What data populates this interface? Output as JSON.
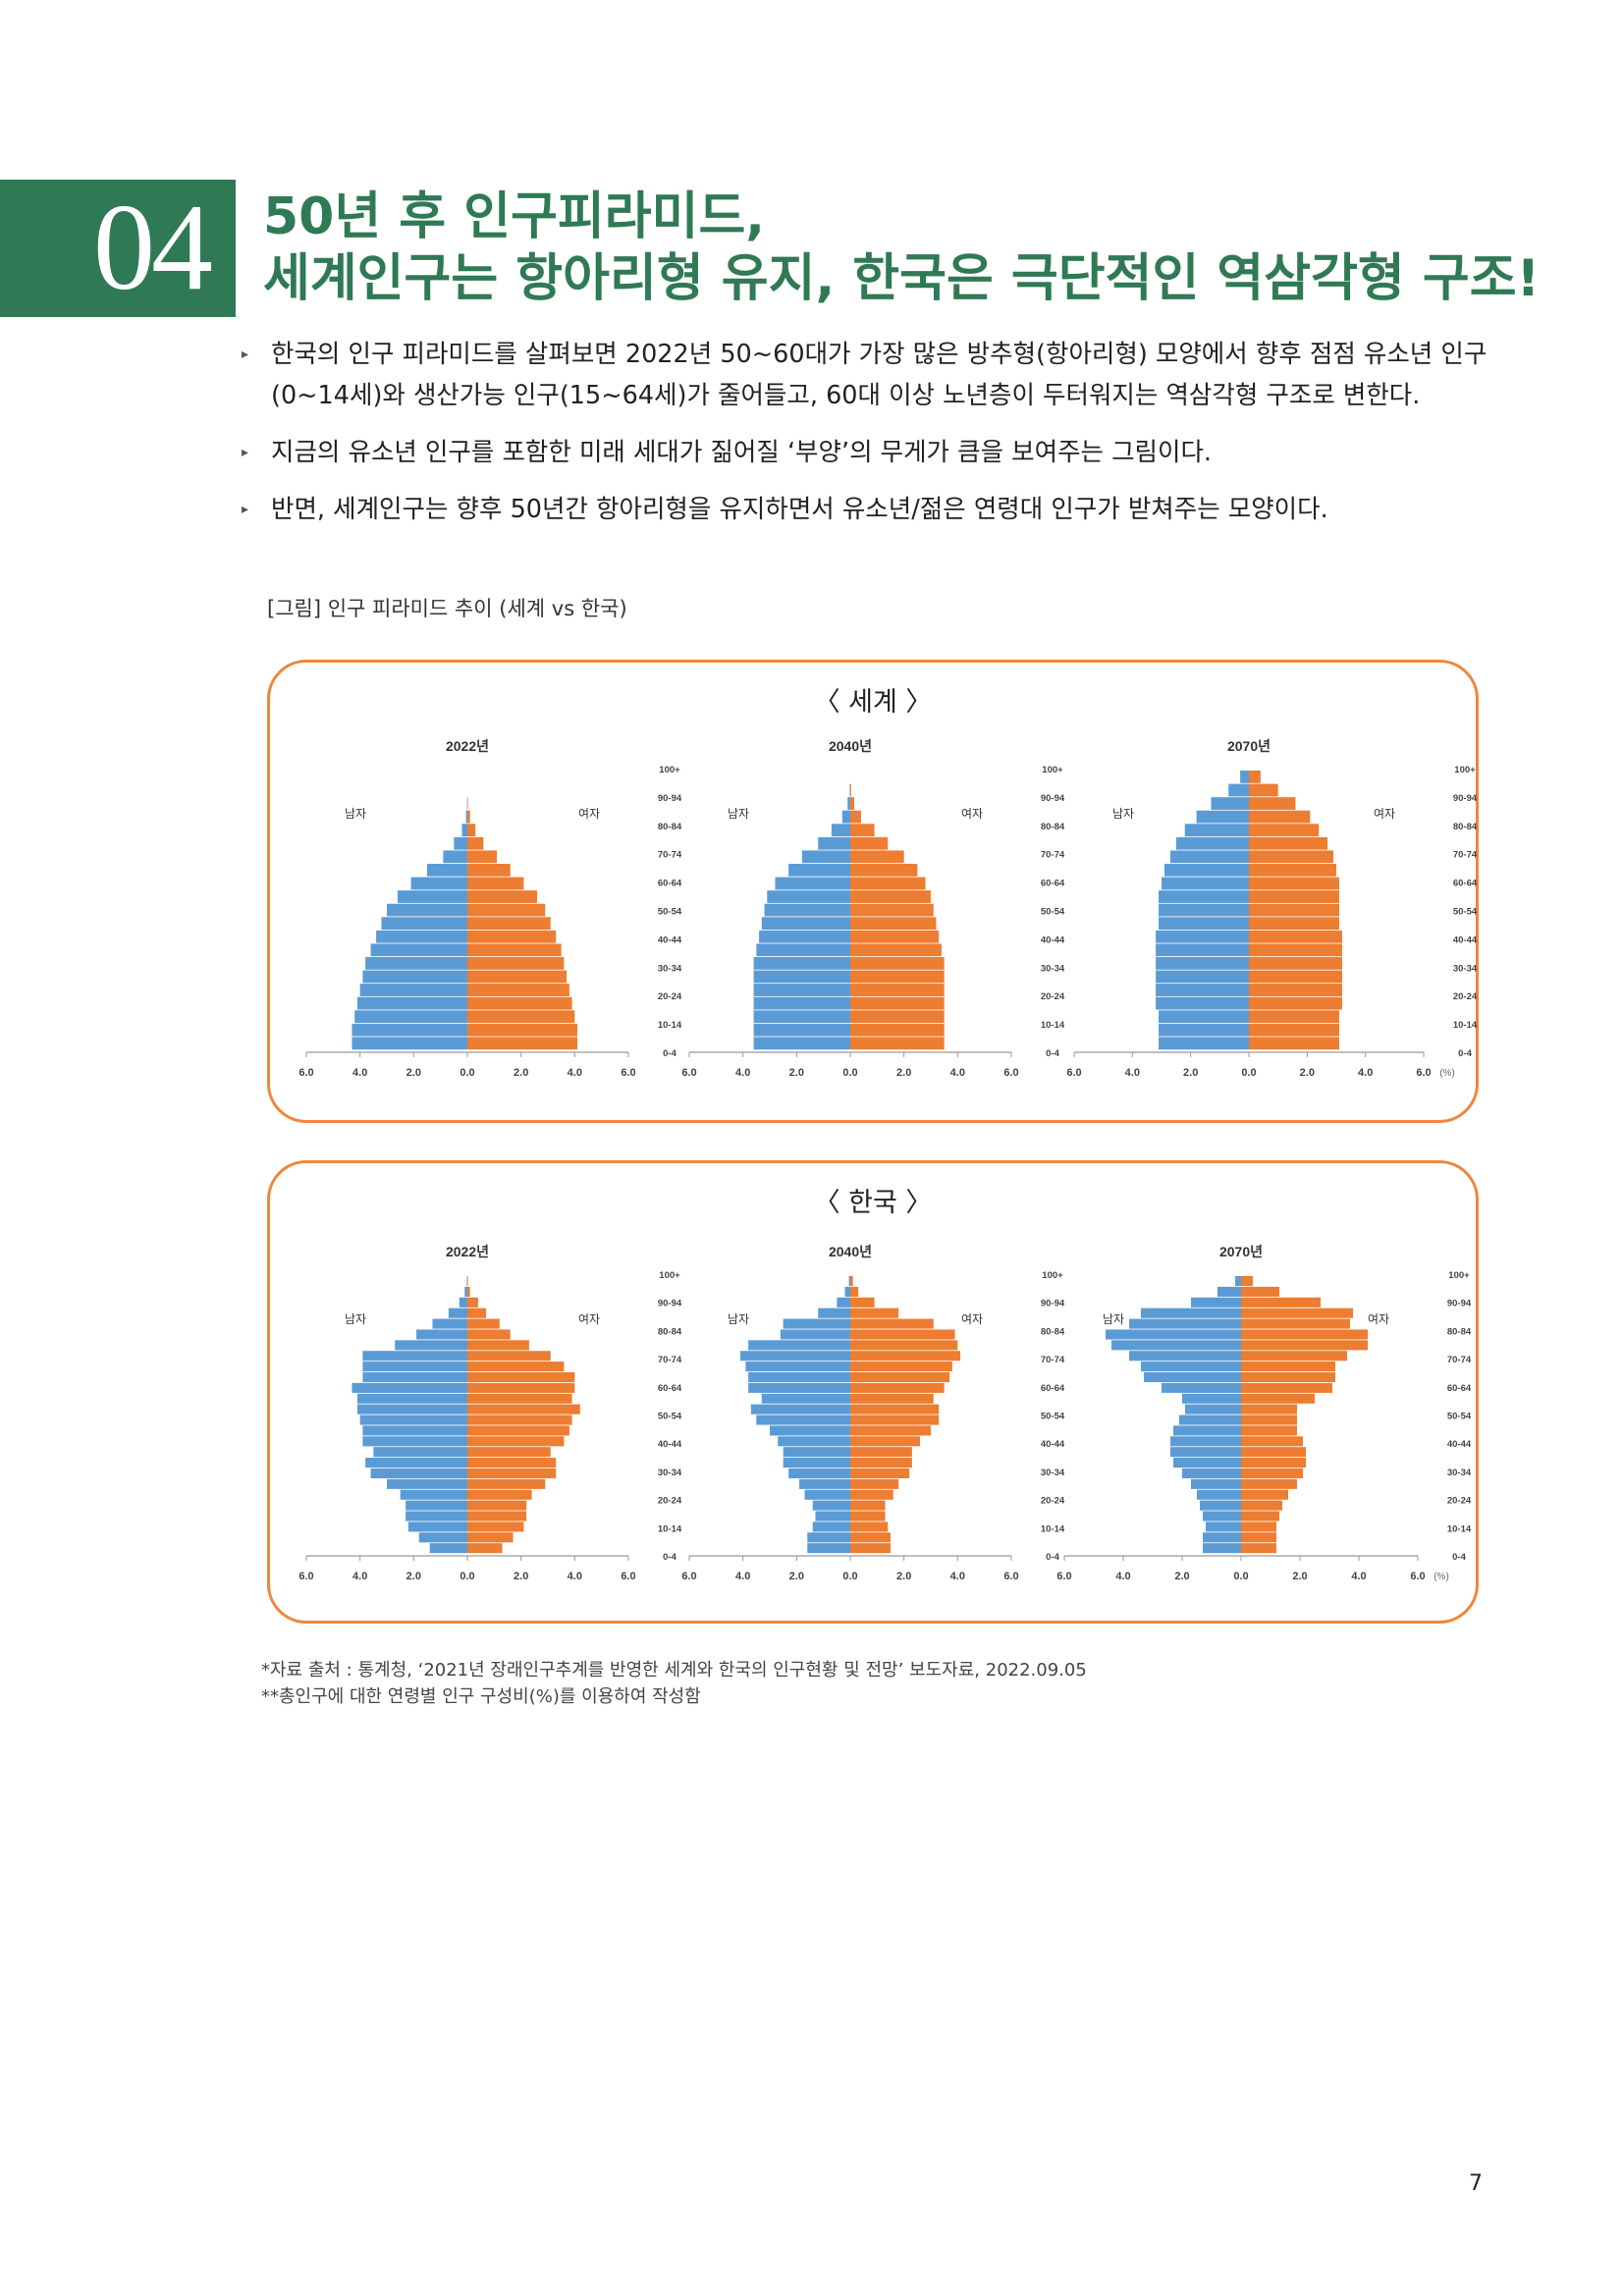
{
  "header": {
    "number": "04",
    "title_line1": "50년 후 인구피라미드,",
    "title_line2": "세계인구는 항아리형 유지, 한국은 극단적인 역삼각형 구조!"
  },
  "bullets": [
    "한국의 인구 피라미드를 살펴보면 2022년 50~60대가 가장 많은 방추형(항아리형) 모양에서 향후 점점 유소년 인구(0~14세)와 생산가능 인구(15~64세)가 줄어들고, 60대 이상 노년층이 두터워지는 역삼각형 구조로 변한다.",
    "지금의 유소년 인구를 포함한 미래 세대가 짊어질 ‘부양’의 무게가 큼을 보여주는 그림이다.",
    "반면, 세계인구는 향후 50년간 항아리형을 유지하면서 유소년/젊은 연령대 인구가 받쳐주는 모양이다."
  ],
  "figure_caption": "[그림] 인구 피라미드 추이 (세계 vs 한국)",
  "labels": {
    "male": "남자",
    "female": "여자",
    "unit": "(%)"
  },
  "colors": {
    "male": "#5b9bd5",
    "female": "#ed7d31",
    "panel_border": "#f0863a",
    "accent": "#2f7a55"
  },
  "chart_data": [
    {
      "type": "bar",
      "group": "〈 세계 〉",
      "title": "2022년",
      "age_ticks": [
        "100+",
        "90-94",
        "80-84",
        "70-74",
        "60-64",
        "50-54",
        "40-44",
        "30-34",
        "20-24",
        "10-14",
        "0-4"
      ],
      "x_ticks": [
        "6.0",
        "4.0",
        "2.0",
        "0.0",
        "2.0",
        "4.0",
        "6.0"
      ],
      "xlim": [
        -6,
        6
      ],
      "male": [
        4.3,
        4.3,
        4.2,
        4.1,
        4.0,
        3.9,
        3.8,
        3.6,
        3.4,
        3.2,
        3.0,
        2.6,
        2.1,
        1.5,
        0.9,
        0.5,
        0.2,
        0.05,
        0.01,
        0.0,
        0.0
      ],
      "female": [
        4.1,
        4.1,
        4.0,
        3.9,
        3.8,
        3.7,
        3.6,
        3.5,
        3.3,
        3.1,
        2.9,
        2.6,
        2.1,
        1.6,
        1.1,
        0.6,
        0.3,
        0.1,
        0.02,
        0.0,
        0.0
      ]
    },
    {
      "type": "bar",
      "group": "〈 세계 〉",
      "title": "2040년",
      "age_ticks": [
        "100+",
        "90-94",
        "80-84",
        "70-74",
        "60-64",
        "50-54",
        "40-44",
        "30-34",
        "20-24",
        "10-14",
        "0-4"
      ],
      "x_ticks": [
        "6.0",
        "4.0",
        "2.0",
        "0.0",
        "2.0",
        "4.0",
        "6.0"
      ],
      "xlim": [
        -6,
        6
      ],
      "male": [
        3.6,
        3.6,
        3.6,
        3.6,
        3.6,
        3.6,
        3.6,
        3.5,
        3.4,
        3.3,
        3.2,
        3.1,
        2.8,
        2.3,
        1.8,
        1.2,
        0.7,
        0.3,
        0.1,
        0.02,
        0.0
      ],
      "female": [
        3.5,
        3.5,
        3.5,
        3.5,
        3.5,
        3.5,
        3.5,
        3.4,
        3.3,
        3.2,
        3.1,
        3.0,
        2.8,
        2.5,
        2.0,
        1.4,
        0.9,
        0.4,
        0.15,
        0.03,
        0.0
      ]
    },
    {
      "type": "bar",
      "group": "〈 세계 〉",
      "title": "2070년",
      "age_ticks": [
        "100+",
        "90-94",
        "80-84",
        "70-74",
        "60-64",
        "50-54",
        "40-44",
        "30-34",
        "20-24",
        "10-14",
        "0-4"
      ],
      "x_ticks": [
        "6.0",
        "4.0",
        "2.0",
        "0.0",
        "2.0",
        "4.0",
        "6.0"
      ],
      "xlim": [
        -6,
        6
      ],
      "male": [
        3.1,
        3.1,
        3.1,
        3.2,
        3.2,
        3.2,
        3.2,
        3.2,
        3.2,
        3.1,
        3.1,
        3.1,
        3.0,
        2.9,
        2.7,
        2.5,
        2.2,
        1.8,
        1.3,
        0.7,
        0.3
      ],
      "female": [
        3.1,
        3.1,
        3.1,
        3.2,
        3.2,
        3.2,
        3.2,
        3.2,
        3.2,
        3.1,
        3.1,
        3.1,
        3.1,
        3.0,
        2.9,
        2.7,
        2.4,
        2.1,
        1.6,
        1.0,
        0.4
      ]
    },
    {
      "type": "bar",
      "group": "〈 한국 〉",
      "title": "2022년",
      "age_ticks": [
        "100+",
        "90-94",
        "80-84",
        "70-74",
        "60-64",
        "50-54",
        "40-44",
        "30-34",
        "20-24",
        "10-14",
        "0-4"
      ],
      "x_ticks": [
        "6.0",
        "4.0",
        "2.0",
        "0.0",
        "2.0",
        "4.0",
        "6.0"
      ],
      "xlim": [
        -6,
        6
      ],
      "male": [
        1.4,
        1.8,
        2.2,
        2.3,
        2.3,
        2.5,
        3.0,
        3.6,
        3.8,
        3.5,
        3.9,
        3.9,
        4.0,
        4.1,
        4.1,
        4.3,
        3.9,
        3.9,
        3.9,
        2.7,
        1.9,
        1.3,
        0.7,
        0.3,
        0.1,
        0.02
      ],
      "female": [
        1.3,
        1.7,
        2.1,
        2.2,
        2.2,
        2.4,
        2.9,
        3.3,
        3.3,
        3.1,
        3.6,
        3.8,
        3.9,
        4.2,
        3.9,
        4.0,
        4.0,
        3.6,
        3.1,
        2.3,
        1.6,
        1.2,
        0.7,
        0.4,
        0.1,
        0.02
      ]
    },
    {
      "type": "bar",
      "group": "〈 한국 〉",
      "title": "2040년",
      "age_ticks": [
        "100+",
        "90-94",
        "80-84",
        "70-74",
        "60-64",
        "50-54",
        "40-44",
        "30-34",
        "20-24",
        "10-14",
        "0-4"
      ],
      "x_ticks": [
        "6.0",
        "4.0",
        "2.0",
        "0.0",
        "2.0",
        "4.0",
        "6.0"
      ],
      "xlim": [
        -6,
        6
      ],
      "male": [
        1.6,
        1.6,
        1.4,
        1.3,
        1.4,
        1.7,
        1.9,
        2.3,
        2.5,
        2.5,
        2.7,
        3.0,
        3.5,
        3.7,
        3.3,
        3.8,
        3.8,
        3.9,
        4.1,
        3.8,
        2.6,
        2.5,
        1.2,
        0.5,
        0.2,
        0.05
      ],
      "female": [
        1.5,
        1.5,
        1.4,
        1.3,
        1.3,
        1.6,
        1.8,
        2.2,
        2.3,
        2.3,
        2.6,
        3.0,
        3.3,
        3.3,
        3.1,
        3.5,
        3.7,
        3.8,
        4.1,
        4.0,
        3.9,
        3.1,
        1.8,
        0.9,
        0.3,
        0.1
      ]
    },
    {
      "type": "bar",
      "group": "〈 한국 〉",
      "title": "2070년",
      "age_ticks": [
        "100+",
        "90-94",
        "80-84",
        "70-74",
        "60-64",
        "50-54",
        "40-44",
        "30-34",
        "20-24",
        "10-14",
        "0-4"
      ],
      "x_ticks": [
        "6.0",
        "4.0",
        "2.0",
        "0.0",
        "2.0",
        "4.0",
        "6.0"
      ],
      "xlim": [
        -6,
        6
      ],
      "male": [
        1.3,
        1.3,
        1.2,
        1.3,
        1.4,
        1.5,
        1.7,
        2.0,
        2.3,
        2.4,
        2.4,
        2.3,
        2.1,
        1.9,
        2.0,
        2.7,
        3.3,
        3.4,
        3.8,
        4.4,
        4.6,
        3.8,
        3.4,
        1.7,
        0.8,
        0.2
      ],
      "female": [
        1.2,
        1.2,
        1.2,
        1.3,
        1.4,
        1.6,
        1.9,
        2.1,
        2.2,
        2.2,
        2.1,
        1.9,
        1.9,
        1.9,
        2.5,
        3.1,
        3.2,
        3.2,
        3.6,
        4.3,
        4.3,
        3.7,
        3.8,
        2.7,
        1.3,
        0.4
      ]
    }
  ],
  "panels": [
    {
      "title": "〈 세계 〉"
    },
    {
      "title": "〈 한국 〉"
    }
  ],
  "source": {
    "line1": "*자료 출처 : 통계청, ‘2021년 장래인구추계를 반영한 세계와 한국의 인구현황 및 전망’ 보도자료, 2022.09.05",
    "line2": "**총인구에 대한 연령별 인구 구성비(%)를 이용하여 작성함"
  },
  "page_number": "7"
}
